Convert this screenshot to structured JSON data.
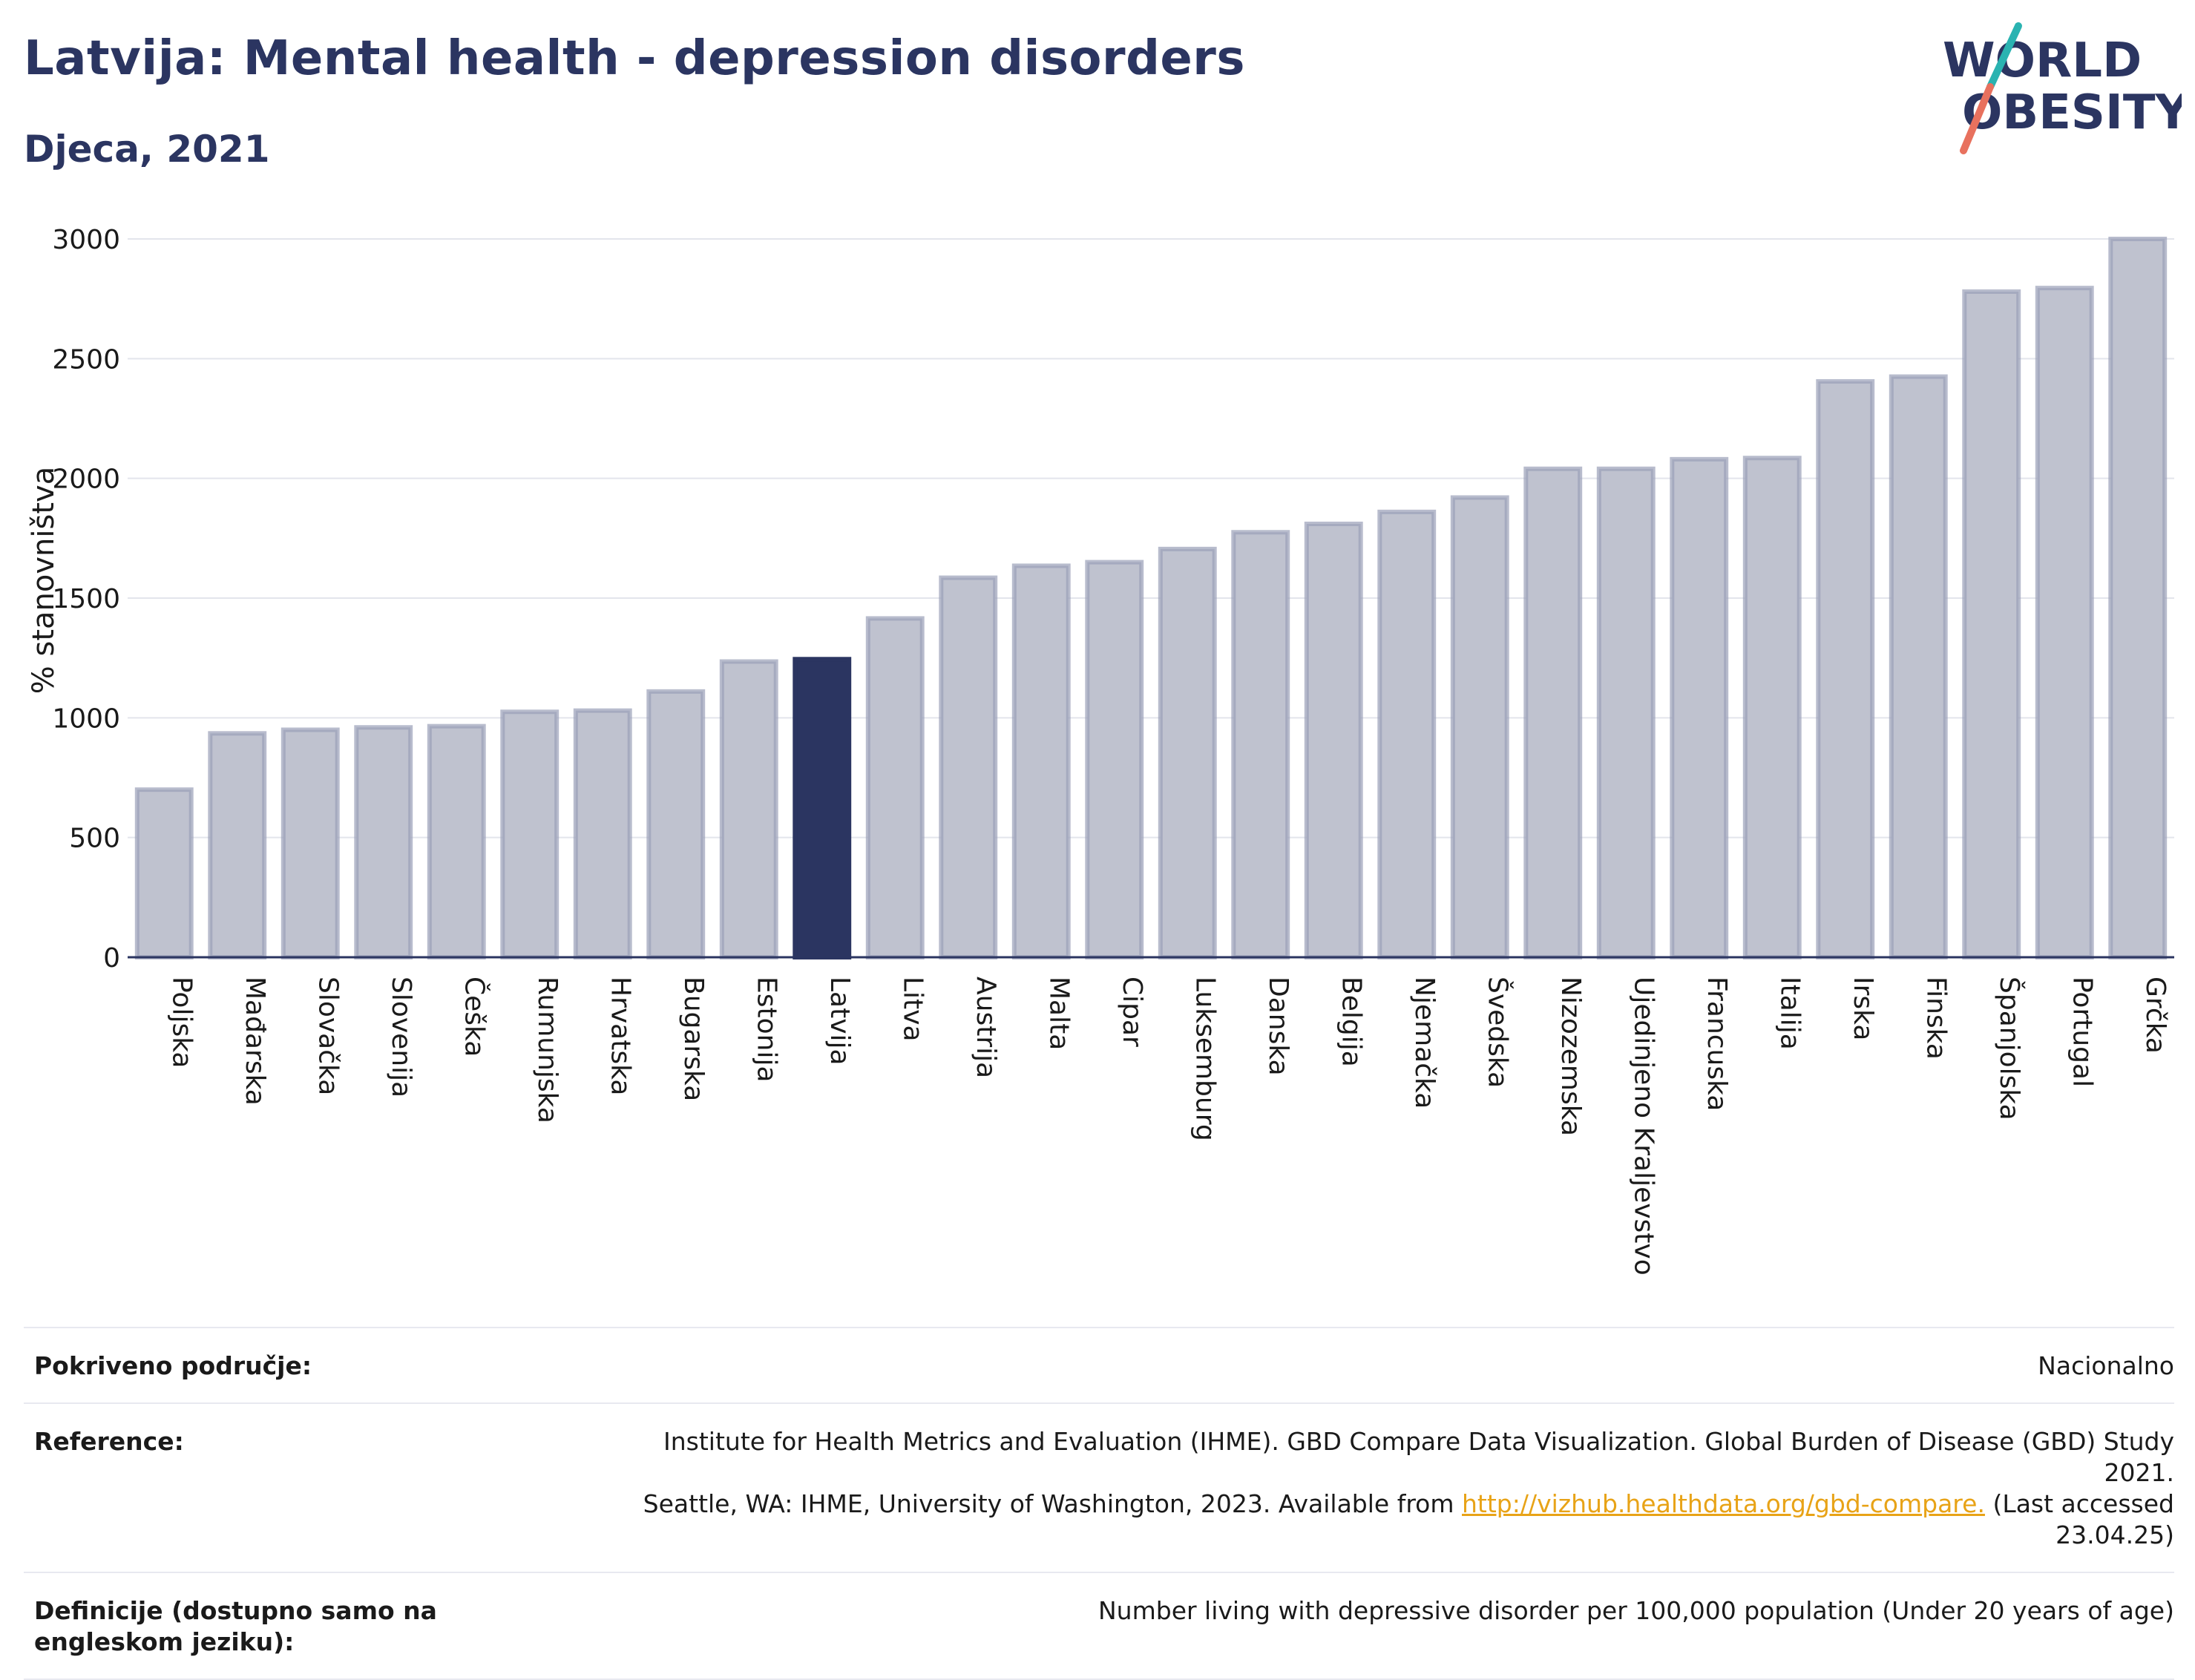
{
  "header": {
    "title": "Latvija: Mental health - depression disorders",
    "subtitle": "Djeca, 2021"
  },
  "logo": {
    "line1": "WORLD",
    "line2": "OBESITY",
    "colors": {
      "text": "#2b3561",
      "slash_teal": "#2ab3b1",
      "slash_coral": "#e8715e"
    }
  },
  "colors": {
    "bar": "#bfc2cf",
    "bar_stroke": "#9aa0b8",
    "highlight": "#2b3561",
    "grid": "#e3e5ec",
    "axis": "#2b3561"
  },
  "chart_data": {
    "type": "bar",
    "title": "Latvija: Mental health - depression disorders",
    "subtitle": "Djeca, 2021",
    "xlabel": "",
    "ylabel": "% stanovništva",
    "ylim": [
      0,
      3000
    ],
    "yticks": [
      0,
      500,
      1000,
      1500,
      2000,
      2500,
      3000
    ],
    "grid": true,
    "highlight": "Latvija",
    "categories": [
      "Poljska",
      "Mađarska",
      "Slovačka",
      "Slovenija",
      "Češka",
      "Rumunjska",
      "Hrvatska",
      "Bugarska",
      "Estonija",
      "Latvija",
      "Litva",
      "Austrija",
      "Malta",
      "Cipar",
      "Luksemburg",
      "Danska",
      "Belgija",
      "Njemačka",
      "Švedska",
      "Nizozemska",
      "Ujedinjeno Kraljevstvo",
      "Francuska",
      "Italija",
      "Irska",
      "Finska",
      "Španjolska",
      "Portugal",
      "Grčka"
    ],
    "values": [
      700,
      935,
      950,
      960,
      965,
      1025,
      1030,
      1110,
      1235,
      1245,
      1415,
      1585,
      1635,
      1650,
      1705,
      1775,
      1810,
      1860,
      1920,
      2040,
      2040,
      2080,
      2085,
      2405,
      2425,
      2780,
      2795,
      3000
    ]
  },
  "footer": {
    "rows": [
      {
        "label": "Pokriveno područje:",
        "value": "Nacionalno"
      },
      {
        "label": "Reference:",
        "value_line1": "Institute for Health Metrics and Evaluation (IHME). GBD Compare Data Visualization. Global Burden of Disease (GBD) Study 2021.",
        "value_line2_pre": "Seattle, WA: IHME, University of Washington, 2023. Available from ",
        "link": "http://vizhub.healthdata.org/gbd-compare.",
        "value_line2_post": " (Last accessed 23.04.25)"
      },
      {
        "label": "Definicije (dostupno samo na engleskom jeziku):",
        "value": "Number living with depressive disorder per 100,000 population (Under 20 years of age)"
      }
    ]
  }
}
